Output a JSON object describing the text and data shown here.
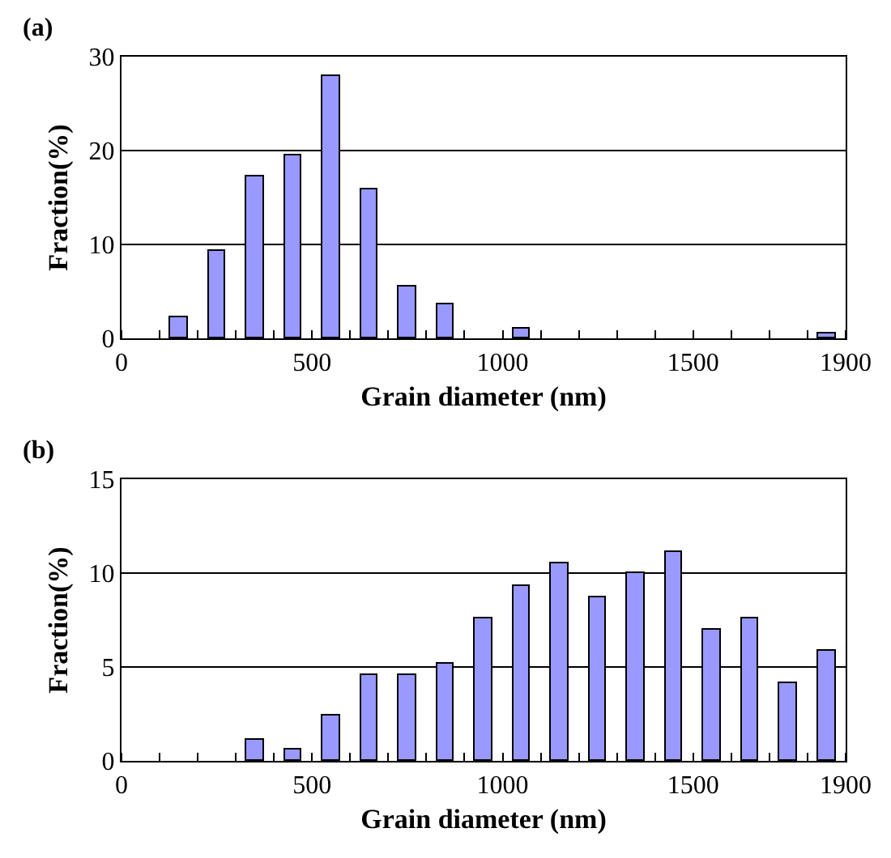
{
  "chart_data": [
    {
      "type": "bar",
      "title": "(a)",
      "xlabel": "Grain diameter (nm)",
      "ylabel": "Fraction(%)",
      "x": [
        150,
        250,
        350,
        450,
        550,
        650,
        750,
        850,
        1050,
        1850
      ],
      "values": [
        2.2,
        9.3,
        17.2,
        19.5,
        28.0,
        15.8,
        5.5,
        3.7,
        1.0,
        0.5
      ],
      "color": "#9999ff",
      "xlim": [
        0,
        1900
      ],
      "xticks": [
        0,
        500,
        1000,
        1500,
        1900
      ],
      "ylim": [
        0,
        30
      ],
      "yticks": [
        0,
        10,
        20,
        30
      ],
      "grid": "y",
      "legend": false
    },
    {
      "type": "bar",
      "title": "(b)",
      "xlabel": "Grain diameter (nm)",
      "ylabel": "Fraction(%)",
      "x": [
        350,
        450,
        550,
        650,
        750,
        850,
        950,
        1050,
        1150,
        1250,
        1350,
        1450,
        1550,
        1650,
        1750,
        1850
      ],
      "values": [
        1.1,
        0.6,
        2.4,
        4.6,
        4.6,
        5.2,
        7.6,
        9.3,
        10.5,
        8.7,
        10.0,
        11.1,
        7.0,
        7.6,
        4.1,
        5.9
      ],
      "color": "#9999ff",
      "xlim": [
        0,
        1900
      ],
      "xticks": [
        0,
        500,
        1000,
        1500,
        1900
      ],
      "ylim": [
        0,
        15
      ],
      "yticks": [
        0,
        5,
        10,
        15
      ],
      "grid": "y",
      "legend": false
    }
  ]
}
